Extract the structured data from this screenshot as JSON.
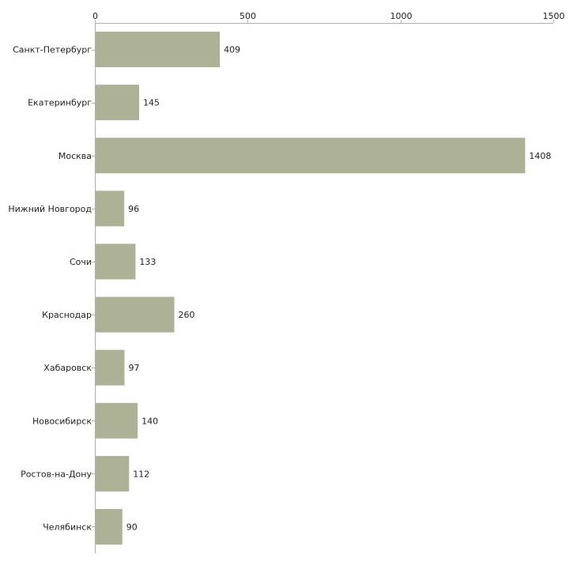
{
  "chart_data": {
    "type": "bar",
    "orientation": "horizontal",
    "title": "",
    "xlabel": "",
    "ylabel": "",
    "xlim": [
      0,
      1500
    ],
    "xticks": [
      0,
      500,
      1000,
      1500
    ],
    "xtick_labels": [
      "0",
      "500",
      "1000",
      "1500"
    ],
    "categories": [
      "Санкт-Петербург",
      "Екатеринбург",
      "Москва",
      "Нижний Новгород",
      "Сочи",
      "Краснодар",
      "Хабаровск",
      "Новосибирск",
      "Ростов-на-Дону",
      "Челябинск"
    ],
    "values": [
      409,
      145,
      1408,
      96,
      133,
      260,
      97,
      140,
      112,
      90
    ],
    "value_labels": [
      "409",
      "145",
      "1408",
      "96",
      "133",
      "260",
      "97",
      "140",
      "112",
      "90"
    ],
    "bar_color": "#adb297",
    "grid": false,
    "legend": "none"
  }
}
